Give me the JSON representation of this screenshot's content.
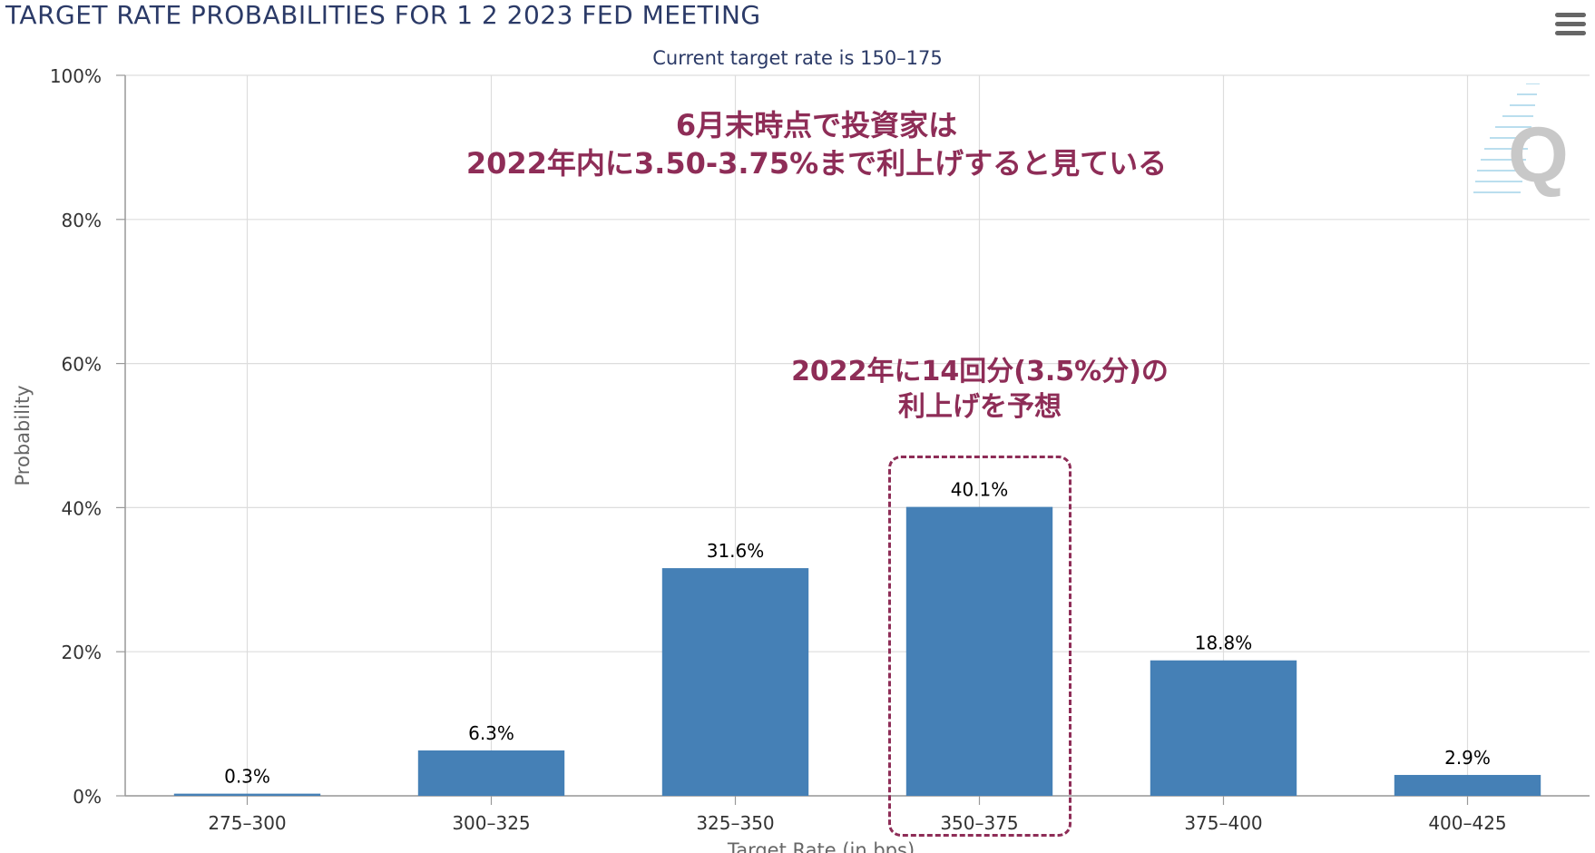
{
  "title": "TARGET RATE PROBABILITIES FOR 1 2 2023 FED MEETING",
  "subtitle": "Current target rate is 150–175",
  "annotations": {
    "top_line1": "6月末時点で投資家は",
    "top_line2": "2022年内に3.50-3.75%まで利上げすると見ている",
    "mid_line1": "2022年に14回分(3.5%分)の",
    "mid_line2": "利上げを予想"
  },
  "colors": {
    "bar": "#4580b6",
    "title": "#2b3a67",
    "annotation": "#8e2d57",
    "grid": "#dddddd",
    "axis_text": "#333333"
  },
  "icons": {
    "menu": "hamburger-menu-icon",
    "watermark": "quikstrike-q-logo"
  },
  "chart_data": {
    "type": "bar",
    "title": "TARGET RATE PROBABILITIES FOR 1 2 2023 FED MEETING",
    "subtitle": "Current target rate is 150–175",
    "xlabel": "Target Rate (in bps)",
    "ylabel": "Probability",
    "categories": [
      "275–300",
      "300–325",
      "325–350",
      "350–375",
      "375–400",
      "400–425"
    ],
    "values": [
      0.3,
      6.3,
      31.6,
      40.1,
      18.8,
      2.9
    ],
    "data_labels": [
      "0.3%",
      "6.3%",
      "31.6%",
      "40.1%",
      "18.8%",
      "2.9%"
    ],
    "ylim": [
      0,
      100
    ],
    "yticks": [
      0,
      20,
      40,
      60,
      80,
      100
    ],
    "ytick_labels": [
      "0%",
      "20%",
      "40%",
      "60%",
      "80%",
      "100%"
    ],
    "grid": true,
    "highlighted_category": "350–375"
  }
}
